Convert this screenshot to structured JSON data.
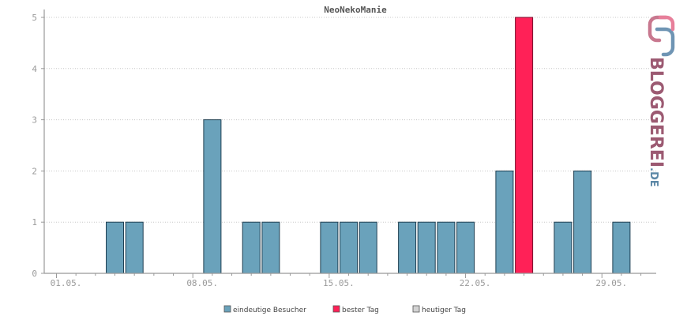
{
  "chart_data": {
    "type": "bar",
    "title": "NeoNekoManie",
    "xlabel": "",
    "ylabel": "",
    "ylim": [
      0,
      5
    ],
    "y_ticks": [
      0,
      1,
      2,
      3,
      4,
      5
    ],
    "x_tick_labels": [
      "01.05.",
      "08.05.",
      "15.05.",
      "22.05.",
      "29.05."
    ],
    "x_tick_days": [
      1,
      8,
      15,
      22,
      29
    ],
    "days": [
      1,
      2,
      3,
      4,
      5,
      6,
      7,
      8,
      9,
      10,
      11,
      12,
      13,
      14,
      15,
      16,
      17,
      18,
      19,
      20,
      21,
      22,
      23,
      24,
      25,
      26,
      27,
      28,
      29,
      30,
      31
    ],
    "series": [
      {
        "name": "eindeutige Besucher",
        "color": "#6aa2bb",
        "values": [
          0,
          0,
          0,
          1,
          1,
          0,
          0,
          0,
          3,
          0,
          1,
          1,
          0,
          0,
          1,
          1,
          1,
          0,
          1,
          1,
          1,
          1,
          0,
          2,
          5,
          0,
          1,
          2,
          0,
          1,
          0
        ]
      }
    ],
    "best_day": 25,
    "best_day_color": "#ff2157",
    "grid": true,
    "legend_position": "bottom",
    "legend": [
      {
        "label": "eindeutige Besucher",
        "color": "#6aa2bb"
      },
      {
        "label": "bester Tag",
        "color": "#ff2157"
      },
      {
        "label": "heutiger Tag",
        "color": "#d3d3d3"
      }
    ]
  },
  "logo": {
    "text_main": "BLOGGEREI",
    "text_suffix": ".DE",
    "color_main": "#9c5a72",
    "color_suffix": "#5b87a6"
  }
}
